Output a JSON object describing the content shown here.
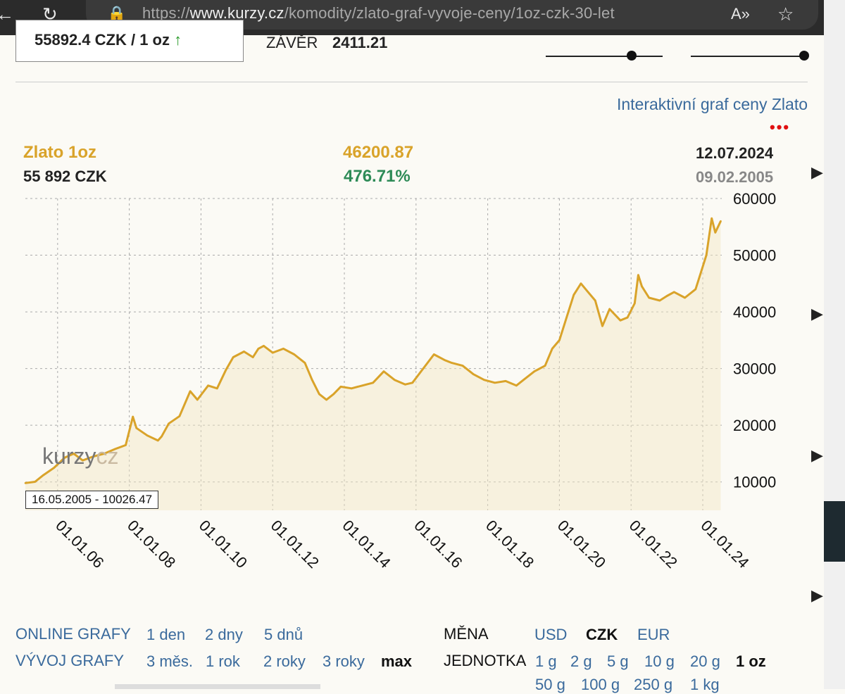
{
  "browser": {
    "url_prefix": "https://",
    "url_domain": "www.kurzy.cz",
    "url_path": "/komodity/zlato-graf-vyvoje-ceny/1oz-czk-30-let",
    "read_aloud_icon": "A»",
    "star_icon": "☆"
  },
  "top": {
    "price_text": "55892.4 CZK / 1 oz",
    "price_arrow": "↑",
    "close_label": "ZÁVĚR",
    "close_value": "2411.21"
  },
  "interactive_link": "Interaktivní graf ceny Zlato",
  "more_dots": "•••",
  "header": {
    "name": "Zlato 1oz",
    "price": "55 892 CZK",
    "start_value": "46200.87",
    "change_pct": "476.71%",
    "end_date": "12.07.2024",
    "start_date": "09.02.2005"
  },
  "colors": {
    "gold": "#d9a32a",
    "green": "#2e8b57",
    "link": "#3a6a9c"
  },
  "tooltip": "16.05.2005 - 10026.47",
  "watermark": {
    "a": "kurzy",
    "b": "cz"
  },
  "chart_data": {
    "type": "area",
    "title": "",
    "xlabel": "",
    "ylabel": "",
    "x_tick_labels": [
      "01.01.06",
      "01.01.08",
      "01.01.10",
      "01.01.12",
      "01.01.14",
      "01.01.16",
      "01.01.18",
      "01.01.20",
      "01.01.22",
      "01.01.24"
    ],
    "y_tick_labels": [
      "10000",
      "20000",
      "30000",
      "40000",
      "50000",
      "60000"
    ],
    "ylim": [
      5000,
      60000
    ],
    "xlim": [
      2005.1,
      2024.53
    ],
    "grid": true,
    "series": [
      {
        "x": [
          2005.1,
          2005.37,
          2005.6,
          2005.9,
          2006.2,
          2006.45,
          2006.7,
          2007.0,
          2007.3,
          2007.6,
          2007.9,
          2008.1,
          2008.2,
          2008.5,
          2008.8,
          2008.9,
          2009.1,
          2009.4,
          2009.7,
          2009.9,
          2010.2,
          2010.45,
          2010.7,
          2010.9,
          2011.2,
          2011.45,
          2011.6,
          2011.75,
          2012.0,
          2012.3,
          2012.6,
          2012.9,
          2013.1,
          2013.3,
          2013.5,
          2013.7,
          2013.9,
          2014.2,
          2014.5,
          2014.8,
          2015.1,
          2015.4,
          2015.7,
          2015.9,
          2016.2,
          2016.5,
          2016.8,
          2017.0,
          2017.3,
          2017.6,
          2017.9,
          2018.2,
          2018.5,
          2018.8,
          2019.0,
          2019.3,
          2019.6,
          2019.8,
          2020.0,
          2020.2,
          2020.4,
          2020.6,
          2020.8,
          2021.0,
          2021.2,
          2021.4,
          2021.7,
          2021.9,
          2022.1,
          2022.2,
          2022.3,
          2022.5,
          2022.8,
          2023.0,
          2023.2,
          2023.5,
          2023.8,
          2023.95,
          2024.1,
          2024.25,
          2024.35,
          2024.5
        ],
        "y": [
          9800,
          10026,
          11200,
          12500,
          14300,
          15000,
          13800,
          14500,
          15000,
          15800,
          16500,
          21500,
          19500,
          18200,
          17300,
          18000,
          20300,
          21600,
          26000,
          24500,
          27000,
          26500,
          29800,
          32000,
          33000,
          32000,
          33500,
          34000,
          32800,
          33500,
          32500,
          31000,
          28000,
          25500,
          24500,
          25500,
          26800,
          26500,
          27000,
          27500,
          29500,
          28000,
          27200,
          27500,
          30000,
          32500,
          31500,
          31000,
          30500,
          29000,
          28000,
          27500,
          27800,
          27000,
          28000,
          29500,
          30500,
          33500,
          35000,
          39000,
          43000,
          45000,
          43500,
          42000,
          37500,
          40500,
          38500,
          39000,
          41500,
          46500,
          44500,
          42500,
          42000,
          42800,
          43500,
          42500,
          44000,
          47000,
          50000,
          56500,
          54000,
          56000
        ]
      }
    ]
  },
  "bottom": {
    "online_label": "ONLINE GRAFY",
    "online_items": [
      "1 den",
      "2 dny",
      "5 dnů"
    ],
    "history_label": "VÝVOJ GRAFY",
    "history_items": [
      "3 měs.",
      "1 rok",
      "2 roky",
      "3 roky"
    ],
    "history_selected": "max",
    "currency_label": "MĚNA",
    "currency_items": [
      "USD",
      "EUR"
    ],
    "currency_selected": "CZK",
    "unit_label": "JEDNOTKA",
    "unit_items": [
      "1 g",
      "2 g",
      "5 g",
      "10 g",
      "20 g"
    ],
    "unit_selected": "1 oz",
    "unit_items_row2": [
      "50 g",
      "100 g",
      "250 g",
      "1 kg"
    ]
  }
}
